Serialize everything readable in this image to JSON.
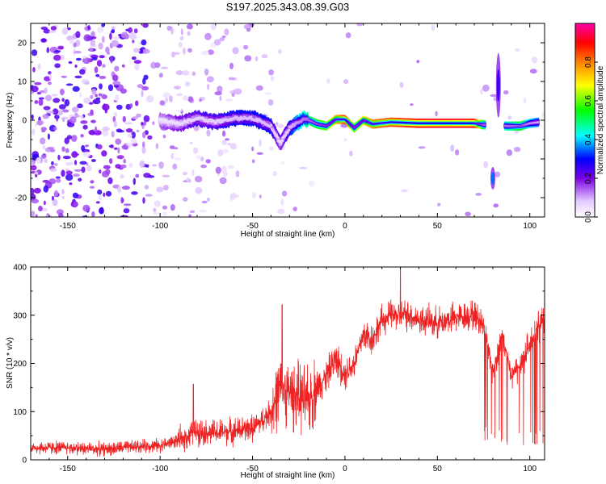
{
  "figure_title": "S197.2025.343.08.39.G03",
  "chart_data": [
    {
      "type": "heatmap",
      "title": "S197.2025.343.08.39.G03",
      "xlabel": "Height of straight line (km)",
      "ylabel": "Frequency (Hz)",
      "xlim": [
        -170,
        108
      ],
      "ylim": [
        -25,
        25
      ],
      "xticks": [
        -150,
        -100,
        -50,
        0,
        50,
        100
      ],
      "yticks": [
        -20,
        -10,
        0,
        10,
        20
      ],
      "colorbar": {
        "label": "Normalized spectral amplitude",
        "range": [
          0,
          1
        ],
        "ticks": [
          0.0,
          0.2,
          0.4,
          0.6,
          0.8
        ],
        "tick_labels": [
          "0.0",
          "0.2",
          "0.4",
          "0.6",
          "0.8"
        ],
        "colors": [
          "#ffffff",
          "#8a2be2",
          "#0000ff",
          "#00ffff",
          "#00ff00",
          "#ffff00",
          "#ff8000",
          "#ff0000",
          "#ff00aa"
        ]
      },
      "ridge": [
        {
          "x": -100,
          "f": 0.0,
          "amp": 0.15
        },
        {
          "x": -90,
          "f": -1.0,
          "amp": 0.2
        },
        {
          "x": -80,
          "f": 0.5,
          "amp": 0.25
        },
        {
          "x": -70,
          "f": -0.5,
          "amp": 0.25
        },
        {
          "x": -60,
          "f": 0.5,
          "amp": 0.3
        },
        {
          "x": -50,
          "f": 0.5,
          "amp": 0.3
        },
        {
          "x": -40,
          "f": -1.5,
          "amp": 0.3
        },
        {
          "x": -35,
          "f": -6.0,
          "amp": 0.2
        },
        {
          "x": -30,
          "f": -2.0,
          "amp": 0.3
        },
        {
          "x": -22,
          "f": 0.5,
          "amp": 0.45
        },
        {
          "x": -15,
          "f": -1.0,
          "amp": 0.55
        },
        {
          "x": -10,
          "f": -1.5,
          "amp": 0.6
        },
        {
          "x": -5,
          "f": 0.2,
          "amp": 0.75
        },
        {
          "x": 0,
          "f": 0.2,
          "amp": 0.85
        },
        {
          "x": 5,
          "f": -2.0,
          "amp": 0.6
        },
        {
          "x": 10,
          "f": 0.0,
          "amp": 0.7
        },
        {
          "x": 15,
          "f": -1.0,
          "amp": 0.8
        },
        {
          "x": 25,
          "f": -0.5,
          "amp": 0.85
        },
        {
          "x": 40,
          "f": -0.8,
          "amp": 0.9
        },
        {
          "x": 55,
          "f": -0.8,
          "amp": 0.92
        },
        {
          "x": 70,
          "f": -0.8,
          "amp": 0.9
        },
        {
          "x": 75,
          "f": -1.2,
          "amp": 0.5
        },
        {
          "x": 88,
          "f": -1.5,
          "amp": 0.45
        },
        {
          "x": 95,
          "f": -1.5,
          "amp": 0.55
        },
        {
          "x": 100,
          "f": -0.8,
          "amp": 0.4
        },
        {
          "x": 105,
          "f": -0.5,
          "amp": 0.35
        }
      ],
      "features": [
        {
          "x": 80,
          "f": -15,
          "amp": 0.35,
          "note": "low-frequency blob"
        },
        {
          "x": 83,
          "f": 9,
          "amp": 0.25,
          "note": "vertical streak"
        }
      ]
    },
    {
      "type": "line",
      "xlabel": "Height of straight line (km)",
      "ylabel": "SNR (10 * v/v)",
      "xlim": [
        -170,
        108
      ],
      "ylim": [
        0,
        400
      ],
      "xticks": [
        -150,
        -100,
        -50,
        0,
        50,
        100
      ],
      "yticks": [
        0,
        100,
        200,
        300,
        400
      ],
      "color": "#ee2222",
      "series": [
        {
          "name": "SNR",
          "x": [
            -170,
            -150,
            -130,
            -110,
            -100,
            -90,
            -80,
            -70,
            -60,
            -50,
            -45,
            -40,
            -35,
            -30,
            -25,
            -20,
            -15,
            -10,
            -5,
            0,
            5,
            10,
            15,
            20,
            25,
            30,
            35,
            40,
            50,
            60,
            70,
            75,
            80,
            85,
            90,
            95,
            100,
            105,
            108
          ],
          "y": [
            25,
            25,
            22,
            28,
            30,
            40,
            60,
            55,
            60,
            65,
            80,
            100,
            150,
            140,
            130,
            120,
            150,
            175,
            210,
            180,
            200,
            260,
            250,
            290,
            300,
            300,
            300,
            290,
            285,
            295,
            300,
            280,
            180,
            260,
            170,
            200,
            240,
            280,
            290
          ]
        }
      ],
      "peaks": [
        {
          "x": -82,
          "y": 157
        },
        {
          "x": -34,
          "y": 322
        },
        {
          "x": 30,
          "y": 398
        }
      ]
    }
  ]
}
